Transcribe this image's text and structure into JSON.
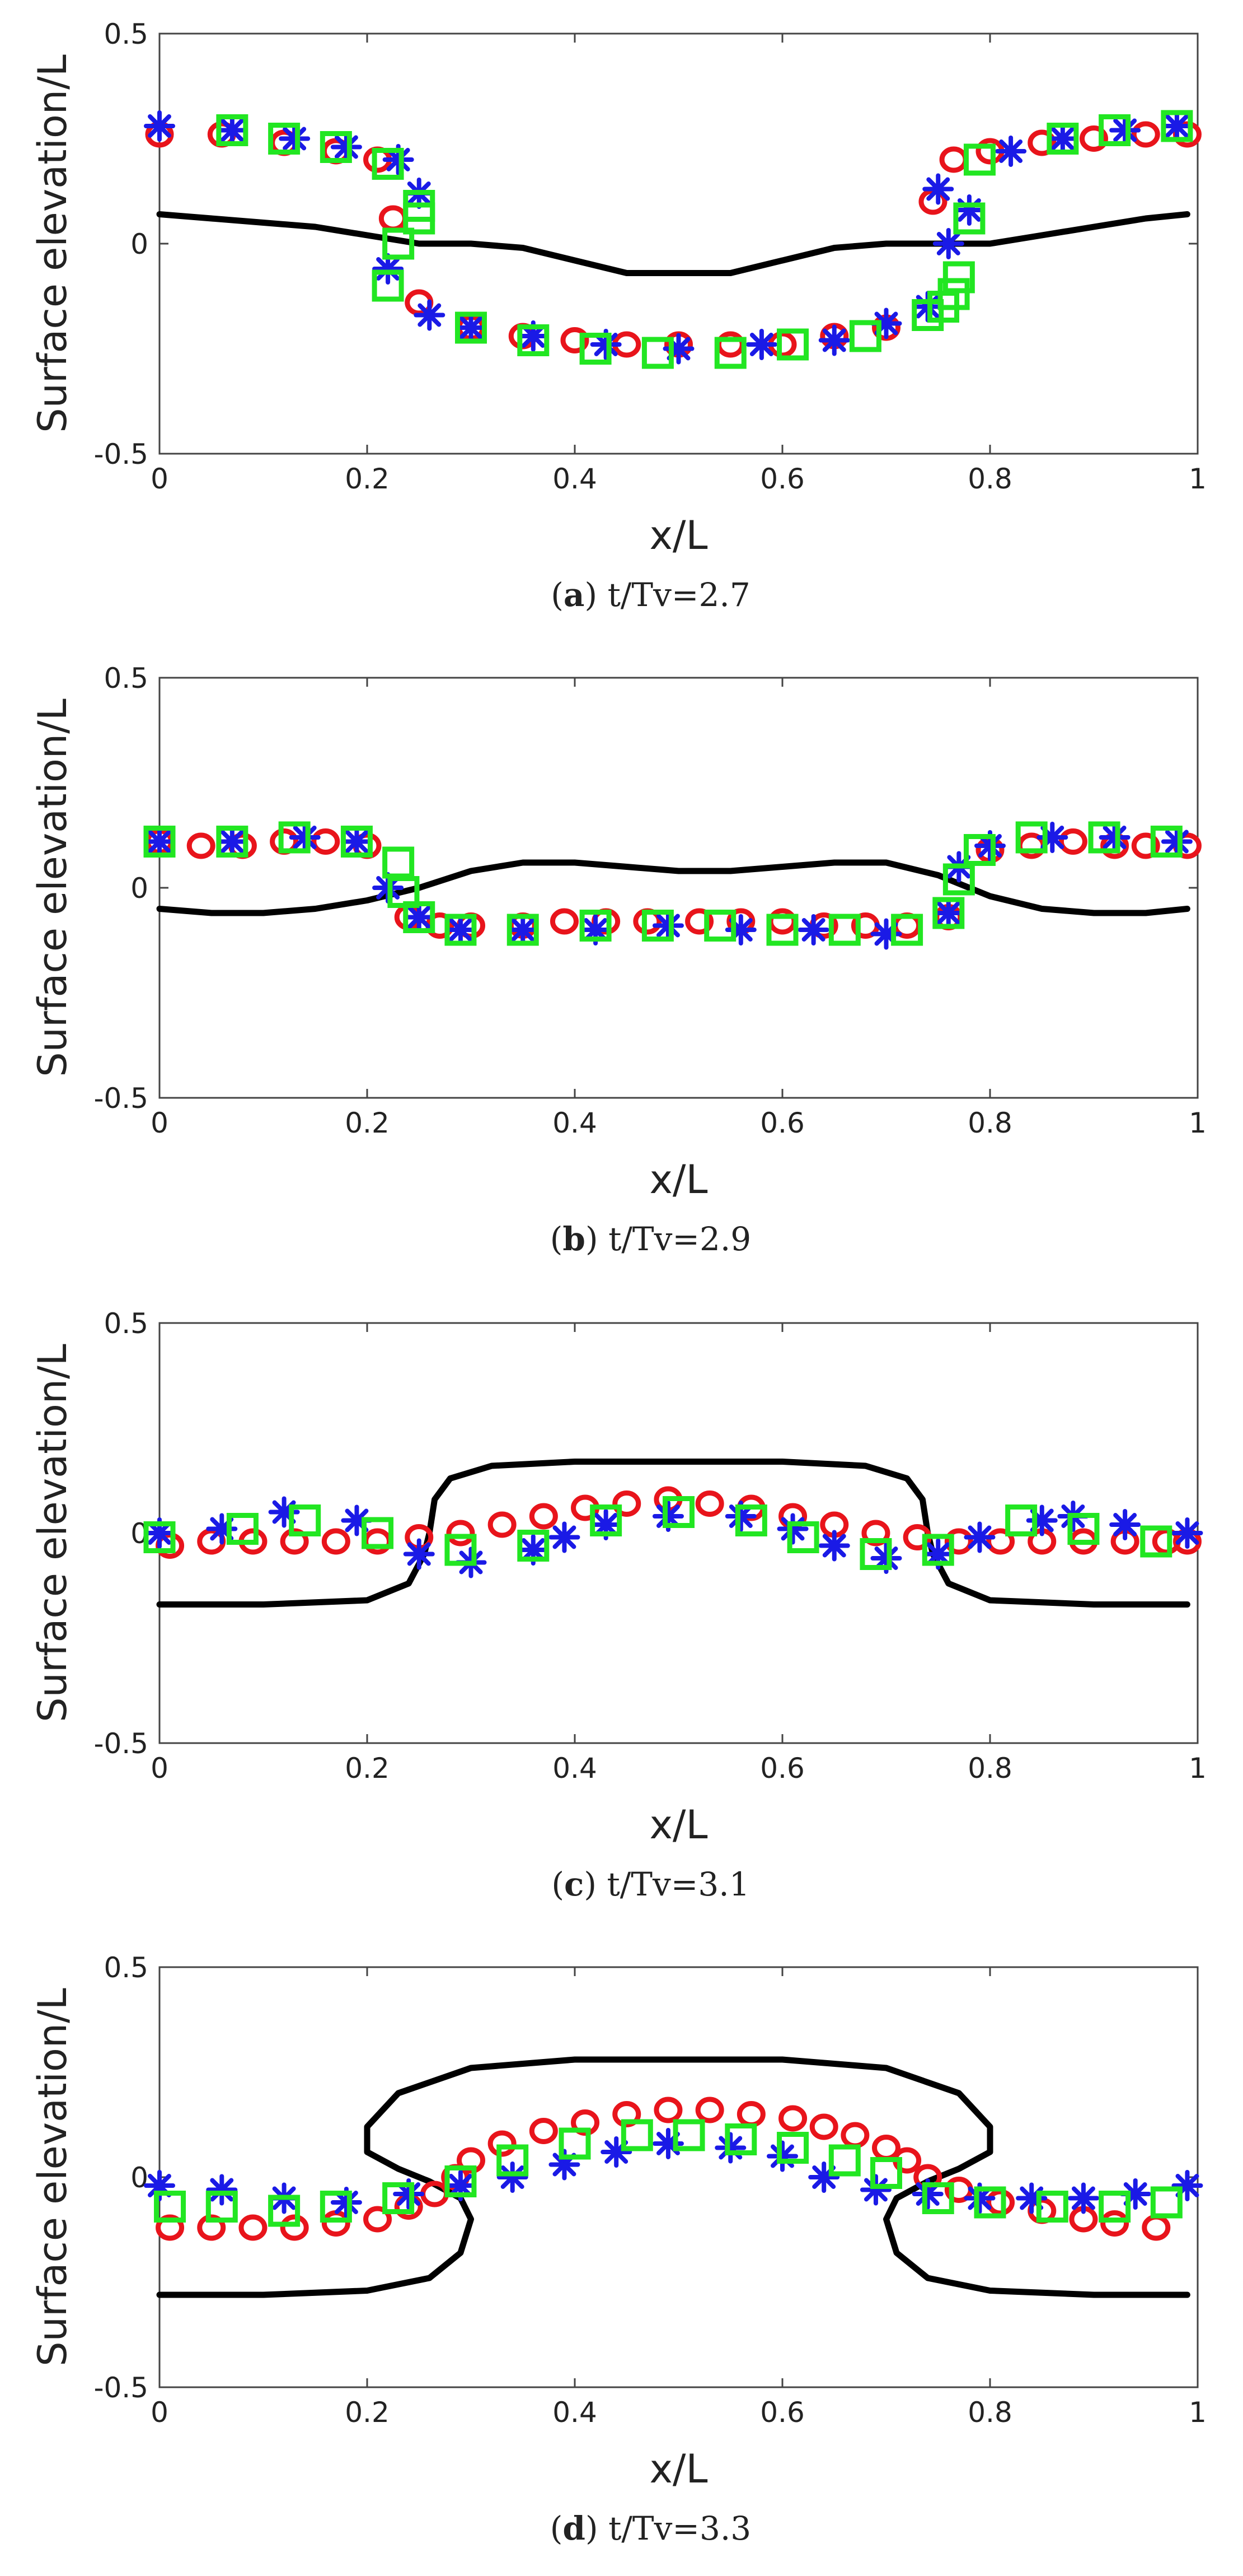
{
  "figure": {
    "x_label": "x/L",
    "y_label": "Surface elevation/L",
    "x_ticks": [
      "0",
      "0.2",
      "0.4",
      "0.6",
      "0.8",
      "1"
    ],
    "y_ticks": [
      "-0.5",
      "0",
      "0.5"
    ],
    "colors": {
      "curve": "#000000",
      "circle": "#e8141b",
      "star": "#1a1ae6",
      "square": "#22e622",
      "axis": "#444444"
    }
  },
  "chart_data": [
    {
      "type": "line",
      "panel": "a",
      "caption_letter": "a",
      "caption_text": "t/Tv=2.7",
      "xlabel": "x/L",
      "ylabel": "Surface elevation/L",
      "xlim": [
        0,
        1
      ],
      "ylim": [
        -0.5,
        0.5
      ],
      "series": [
        {
          "name": "curve",
          "marker": "line",
          "x": [
            0,
            0.05,
            0.1,
            0.15,
            0.2,
            0.25,
            0.3,
            0.35,
            0.4,
            0.45,
            0.5,
            0.55,
            0.6,
            0.65,
            0.7,
            0.75,
            0.8,
            0.85,
            0.9,
            0.95,
            0.99
          ],
          "y": [
            0.07,
            0.06,
            0.05,
            0.04,
            0.02,
            0.0,
            0.0,
            -0.01,
            -0.04,
            -0.07,
            -0.07,
            -0.07,
            -0.04,
            -0.01,
            0.0,
            0.0,
            0.0,
            0.02,
            0.04,
            0.06,
            0.07
          ]
        },
        {
          "name": "circles",
          "marker": "o",
          "x": [
            0.0,
            0.06,
            0.12,
            0.17,
            0.21,
            0.225,
            0.25,
            0.3,
            0.35,
            0.4,
            0.45,
            0.5,
            0.55,
            0.6,
            0.65,
            0.7,
            0.745,
            0.765,
            0.8,
            0.85,
            0.9,
            0.95,
            0.99
          ],
          "y": [
            0.26,
            0.26,
            0.24,
            0.22,
            0.2,
            0.06,
            -0.14,
            -0.2,
            -0.22,
            -0.23,
            -0.24,
            -0.24,
            -0.24,
            -0.24,
            -0.22,
            -0.2,
            0.1,
            0.2,
            0.22,
            0.24,
            0.25,
            0.26,
            0.26
          ]
        },
        {
          "name": "stars",
          "marker": "*",
          "x": [
            0.0,
            0.07,
            0.13,
            0.18,
            0.23,
            0.25,
            0.22,
            0.26,
            0.3,
            0.36,
            0.43,
            0.5,
            0.58,
            0.65,
            0.7,
            0.74,
            0.76,
            0.78,
            0.75,
            0.82,
            0.87,
            0.93,
            0.98
          ],
          "y": [
            0.28,
            0.27,
            0.25,
            0.23,
            0.2,
            0.12,
            -0.06,
            -0.17,
            -0.2,
            -0.22,
            -0.24,
            -0.25,
            -0.24,
            -0.23,
            -0.19,
            -0.15,
            0.0,
            0.08,
            0.13,
            0.22,
            0.25,
            0.27,
            0.28
          ]
        },
        {
          "name": "squares",
          "marker": "square",
          "x": [
            0.07,
            0.12,
            0.17,
            0.22,
            0.22,
            0.23,
            0.25,
            0.25,
            0.3,
            0.36,
            0.42,
            0.48,
            0.55,
            0.61,
            0.68,
            0.74,
            0.755,
            0.765,
            0.77,
            0.78,
            0.79,
            0.87,
            0.92,
            0.98
          ],
          "y": [
            0.27,
            0.25,
            0.23,
            0.19,
            -0.1,
            0.0,
            0.06,
            0.09,
            -0.2,
            -0.23,
            -0.25,
            -0.26,
            -0.26,
            -0.24,
            -0.22,
            -0.17,
            -0.15,
            -0.12,
            -0.08,
            0.06,
            0.2,
            0.25,
            0.27,
            0.28
          ]
        }
      ]
    },
    {
      "type": "line",
      "panel": "b",
      "caption_letter": "b",
      "caption_text": "t/Tv=2.9",
      "xlabel": "x/L",
      "ylabel": "Surface elevation/L",
      "xlim": [
        0,
        1
      ],
      "ylim": [
        -0.5,
        0.5
      ],
      "series": [
        {
          "name": "curve",
          "marker": "line",
          "x": [
            0,
            0.05,
            0.1,
            0.15,
            0.2,
            0.25,
            0.3,
            0.35,
            0.4,
            0.45,
            0.5,
            0.55,
            0.6,
            0.65,
            0.7,
            0.75,
            0.8,
            0.85,
            0.9,
            0.95,
            0.99
          ],
          "y": [
            -0.05,
            -0.06,
            -0.06,
            -0.05,
            -0.03,
            0.0,
            0.04,
            0.06,
            0.06,
            0.05,
            0.04,
            0.04,
            0.05,
            0.06,
            0.06,
            0.03,
            -0.02,
            -0.05,
            -0.06,
            -0.06,
            -0.05
          ]
        },
        {
          "name": "circles",
          "marker": "o",
          "x": [
            0.0,
            0.04,
            0.08,
            0.12,
            0.16,
            0.2,
            0.24,
            0.27,
            0.3,
            0.35,
            0.39,
            0.43,
            0.47,
            0.52,
            0.56,
            0.6,
            0.64,
            0.68,
            0.72,
            0.76,
            0.8,
            0.84,
            0.88,
            0.92,
            0.95,
            0.99
          ],
          "y": [
            0.11,
            0.1,
            0.1,
            0.11,
            0.11,
            0.1,
            -0.07,
            -0.09,
            -0.09,
            -0.09,
            -0.08,
            -0.08,
            -0.08,
            -0.08,
            -0.08,
            -0.08,
            -0.09,
            -0.09,
            -0.09,
            -0.07,
            0.09,
            0.1,
            0.11,
            0.1,
            0.1,
            0.1
          ]
        },
        {
          "name": "stars",
          "marker": "*",
          "x": [
            0.0,
            0.07,
            0.14,
            0.19,
            0.22,
            0.25,
            0.29,
            0.35,
            0.42,
            0.49,
            0.56,
            0.63,
            0.7,
            0.76,
            0.77,
            0.8,
            0.86,
            0.92,
            0.98
          ],
          "y": [
            0.11,
            0.11,
            0.12,
            0.11,
            0.0,
            -0.07,
            -0.1,
            -0.1,
            -0.1,
            -0.09,
            -0.1,
            -0.1,
            -0.11,
            -0.06,
            0.05,
            0.1,
            0.12,
            0.12,
            0.11
          ]
        },
        {
          "name": "squares",
          "marker": "square",
          "x": [
            0.0,
            0.07,
            0.13,
            0.19,
            0.23,
            0.235,
            0.25,
            0.29,
            0.35,
            0.42,
            0.48,
            0.54,
            0.6,
            0.66,
            0.72,
            0.76,
            0.77,
            0.79,
            0.84,
            0.91,
            0.97
          ],
          "y": [
            0.11,
            0.11,
            0.12,
            0.11,
            0.06,
            -0.01,
            -0.07,
            -0.1,
            -0.1,
            -0.09,
            -0.09,
            -0.09,
            -0.1,
            -0.1,
            -0.1,
            -0.06,
            0.02,
            0.09,
            0.12,
            0.12,
            0.11
          ]
        }
      ]
    },
    {
      "type": "line",
      "panel": "c",
      "caption_letter": "c",
      "caption_text": "t/Tv=3.1",
      "xlabel": "x/L",
      "ylabel": "Surface elevation/L",
      "xlim": [
        0,
        1
      ],
      "ylim": [
        -0.5,
        0.5
      ],
      "series": [
        {
          "name": "curve",
          "marker": "line",
          "x": [
            0,
            0.1,
            0.2,
            0.24,
            0.255,
            0.26,
            0.265,
            0.28,
            0.32,
            0.4,
            0.5,
            0.6,
            0.68,
            0.72,
            0.735,
            0.74,
            0.745,
            0.76,
            0.8,
            0.9,
            0.99
          ],
          "y": [
            -0.17,
            -0.17,
            -0.16,
            -0.12,
            -0.05,
            0.0,
            0.08,
            0.13,
            0.16,
            0.17,
            0.17,
            0.17,
            0.16,
            0.13,
            0.08,
            0.0,
            -0.05,
            -0.12,
            -0.16,
            -0.17,
            -0.17
          ]
        },
        {
          "name": "circles",
          "marker": "o",
          "x": [
            0.01,
            0.05,
            0.09,
            0.13,
            0.17,
            0.21,
            0.25,
            0.29,
            0.33,
            0.37,
            0.41,
            0.45,
            0.49,
            0.53,
            0.57,
            0.61,
            0.65,
            0.69,
            0.73,
            0.77,
            0.81,
            0.85,
            0.89,
            0.93,
            0.97,
            0.99
          ],
          "y": [
            -0.03,
            -0.02,
            -0.02,
            -0.02,
            -0.02,
            -0.02,
            -0.01,
            0.0,
            0.02,
            0.04,
            0.06,
            0.07,
            0.08,
            0.07,
            0.06,
            0.04,
            0.02,
            0.0,
            -0.01,
            -0.02,
            -0.02,
            -0.02,
            -0.02,
            -0.02,
            -0.02,
            -0.02
          ]
        },
        {
          "name": "stars",
          "marker": "*",
          "x": [
            0.0,
            0.06,
            0.12,
            0.19,
            0.25,
            0.3,
            0.36,
            0.39,
            0.43,
            0.49,
            0.56,
            0.61,
            0.65,
            0.7,
            0.75,
            0.79,
            0.85,
            0.88,
            0.93,
            0.99
          ],
          "y": [
            0.0,
            0.01,
            0.05,
            0.03,
            -0.05,
            -0.07,
            -0.04,
            -0.01,
            0.02,
            0.04,
            0.04,
            0.01,
            -0.03,
            -0.06,
            -0.05,
            -0.01,
            0.03,
            0.04,
            0.02,
            0.0
          ]
        },
        {
          "name": "squares",
          "marker": "square",
          "x": [
            0.0,
            0.08,
            0.14,
            0.21,
            0.29,
            0.36,
            0.43,
            0.5,
            0.57,
            0.62,
            0.69,
            0.75,
            0.83,
            0.89,
            0.96
          ],
          "y": [
            -0.01,
            0.01,
            0.03,
            0.0,
            -0.04,
            -0.03,
            0.03,
            0.05,
            0.03,
            -0.01,
            -0.05,
            -0.04,
            0.03,
            0.01,
            -0.02
          ]
        }
      ]
    },
    {
      "type": "line",
      "panel": "d",
      "caption_letter": "d",
      "caption_text": "t/Tv=3.3",
      "xlabel": "x/L",
      "ylabel": "Surface elevation/L",
      "xlim": [
        0,
        1
      ],
      "ylim": [
        -0.5,
        0.5
      ],
      "series": [
        {
          "name": "curve",
          "marker": "line",
          "x": [
            0,
            0.1,
            0.2,
            0.26,
            0.29,
            0.3,
            0.29,
            0.26,
            0.23,
            0.2,
            0.2,
            0.23,
            0.3,
            0.4,
            0.5,
            0.6,
            0.7,
            0.77,
            0.8,
            0.8,
            0.77,
            0.74,
            0.71,
            0.7,
            0.71,
            0.74,
            0.8,
            0.9,
            0.99
          ],
          "y": [
            -0.28,
            -0.28,
            -0.27,
            -0.24,
            -0.18,
            -0.1,
            -0.05,
            -0.01,
            0.02,
            0.06,
            0.12,
            0.2,
            0.26,
            0.28,
            0.28,
            0.28,
            0.26,
            0.2,
            0.12,
            0.06,
            0.02,
            -0.01,
            -0.05,
            -0.1,
            -0.18,
            -0.24,
            -0.27,
            -0.28,
            -0.28
          ]
        },
        {
          "name": "circles",
          "marker": "o",
          "x": [
            0.01,
            0.05,
            0.09,
            0.13,
            0.17,
            0.21,
            0.24,
            0.265,
            0.285,
            0.3,
            0.33,
            0.37,
            0.41,
            0.45,
            0.49,
            0.53,
            0.57,
            0.61,
            0.64,
            0.67,
            0.7,
            0.72,
            0.74,
            0.77,
            0.81,
            0.85,
            0.89,
            0.92,
            0.96
          ],
          "y": [
            -0.12,
            -0.12,
            -0.12,
            -0.12,
            -0.11,
            -0.1,
            -0.07,
            -0.04,
            0.0,
            0.04,
            0.08,
            0.11,
            0.13,
            0.15,
            0.16,
            0.16,
            0.15,
            0.14,
            0.12,
            0.1,
            0.07,
            0.04,
            0.0,
            -0.03,
            -0.06,
            -0.08,
            -0.1,
            -0.11,
            -0.12
          ]
        },
        {
          "name": "stars",
          "marker": "*",
          "x": [
            0.0,
            0.06,
            0.12,
            0.18,
            0.24,
            0.29,
            0.34,
            0.39,
            0.44,
            0.49,
            0.55,
            0.6,
            0.64,
            0.69,
            0.74,
            0.79,
            0.84,
            0.89,
            0.94,
            0.99
          ],
          "y": [
            -0.02,
            -0.03,
            -0.05,
            -0.06,
            -0.04,
            -0.02,
            0.0,
            0.03,
            0.06,
            0.08,
            0.07,
            0.05,
            0.0,
            -0.03,
            -0.04,
            -0.05,
            -0.05,
            -0.05,
            -0.04,
            -0.02
          ]
        },
        {
          "name": "squares",
          "marker": "square",
          "x": [
            0.01,
            0.06,
            0.12,
            0.17,
            0.23,
            0.29,
            0.34,
            0.4,
            0.46,
            0.51,
            0.56,
            0.61,
            0.66,
            0.7,
            0.75,
            0.8,
            0.86,
            0.92,
            0.97
          ],
          "y": [
            -0.07,
            -0.07,
            -0.08,
            -0.07,
            -0.05,
            -0.01,
            0.04,
            0.08,
            0.1,
            0.1,
            0.09,
            0.07,
            0.04,
            0.01,
            -0.05,
            -0.06,
            -0.07,
            -0.07,
            -0.06
          ]
        }
      ]
    }
  ]
}
